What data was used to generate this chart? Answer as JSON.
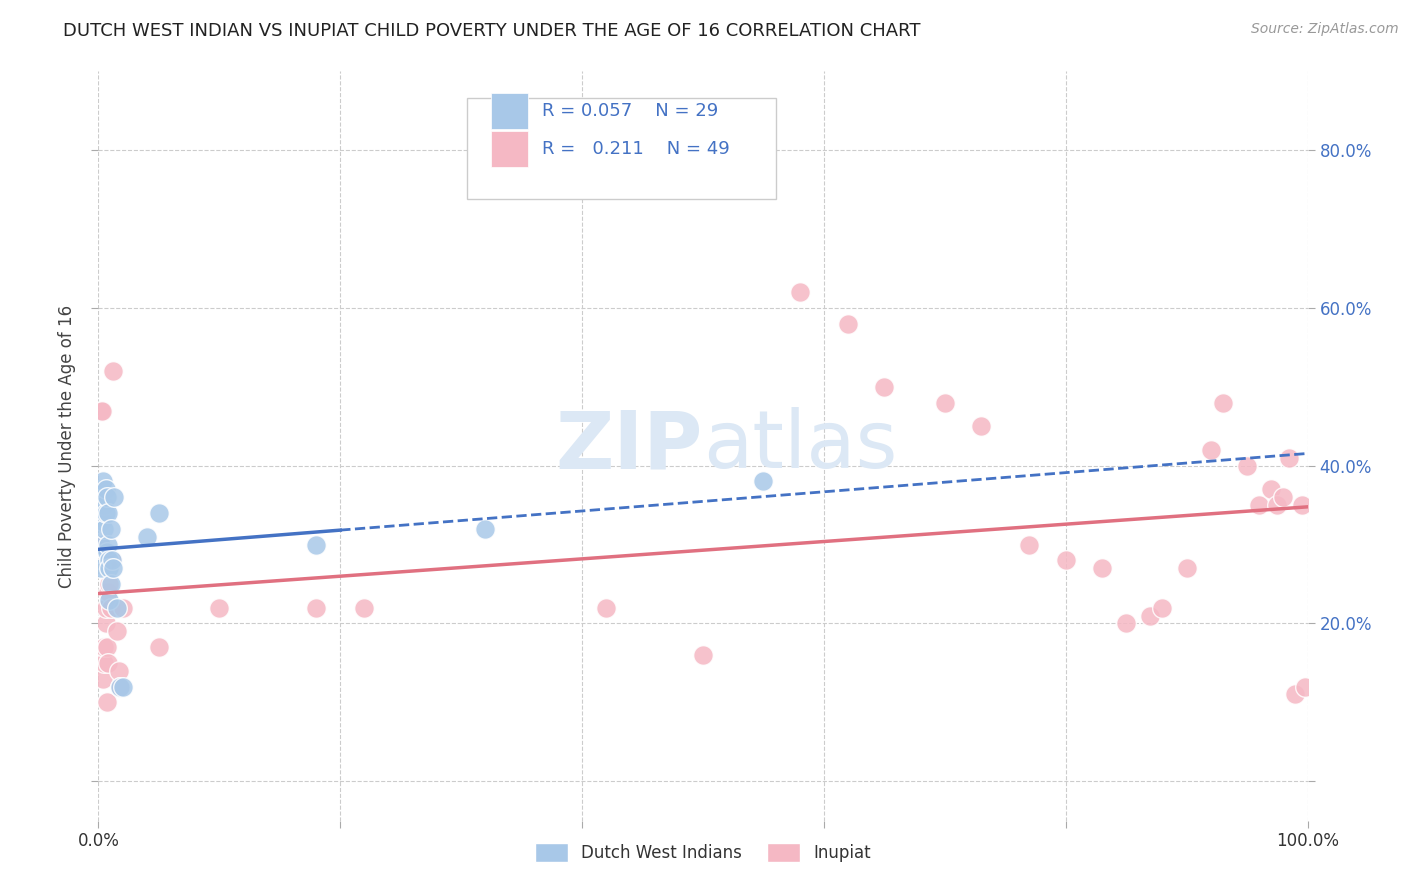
{
  "title": "DUTCH WEST INDIAN VS INUPIAT CHILD POVERTY UNDER THE AGE OF 16 CORRELATION CHART",
  "source": "Source: ZipAtlas.com",
  "ylabel": "Child Poverty Under the Age of 16",
  "xlim": [
    0,
    1.0
  ],
  "ylim": [
    -0.05,
    0.9
  ],
  "blue_color": "#a8c8e8",
  "pink_color": "#f5b8c4",
  "blue_line_color": "#4472c4",
  "pink_line_color": "#e07080",
  "legend_text_color": "#4472c4",
  "title_color": "#222222",
  "watermark_color": "#dce8f5",
  "grid_color": "#cccccc",
  "background_color": "#ffffff",
  "dutch_x": [
    0.002,
    0.002,
    0.003,
    0.004,
    0.004,
    0.005,
    0.005,
    0.006,
    0.006,
    0.007,
    0.007,
    0.008,
    0.008,
    0.009,
    0.009,
    0.009,
    0.01,
    0.01,
    0.011,
    0.012,
    0.013,
    0.015,
    0.018,
    0.02,
    0.04,
    0.05,
    0.18,
    0.32,
    0.55
  ],
  "dutch_y": [
    0.27,
    0.3,
    0.33,
    0.37,
    0.38,
    0.35,
    0.32,
    0.34,
    0.37,
    0.36,
    0.29,
    0.34,
    0.3,
    0.28,
    0.27,
    0.23,
    0.25,
    0.32,
    0.28,
    0.27,
    0.36,
    0.22,
    0.12,
    0.12,
    0.31,
    0.34,
    0.3,
    0.32,
    0.38
  ],
  "inupiat_x": [
    0.002,
    0.003,
    0.003,
    0.004,
    0.005,
    0.005,
    0.006,
    0.006,
    0.007,
    0.007,
    0.008,
    0.008,
    0.009,
    0.01,
    0.011,
    0.012,
    0.015,
    0.017,
    0.018,
    0.02,
    0.05,
    0.1,
    0.18,
    0.22,
    0.42,
    0.5,
    0.58,
    0.62,
    0.65,
    0.7,
    0.73,
    0.77,
    0.8,
    0.83,
    0.85,
    0.87,
    0.88,
    0.9,
    0.92,
    0.93,
    0.95,
    0.96,
    0.97,
    0.975,
    0.98,
    0.985,
    0.99,
    0.995,
    0.998
  ],
  "inupiat_y": [
    0.47,
    0.47,
    0.3,
    0.13,
    0.15,
    0.17,
    0.2,
    0.22,
    0.1,
    0.17,
    0.15,
    0.24,
    0.25,
    0.22,
    0.28,
    0.52,
    0.19,
    0.14,
    0.12,
    0.22,
    0.17,
    0.22,
    0.22,
    0.22,
    0.22,
    0.16,
    0.62,
    0.58,
    0.5,
    0.48,
    0.45,
    0.3,
    0.28,
    0.27,
    0.2,
    0.21,
    0.22,
    0.27,
    0.42,
    0.48,
    0.4,
    0.35,
    0.37,
    0.35,
    0.36,
    0.41,
    0.11,
    0.35,
    0.12
  ]
}
